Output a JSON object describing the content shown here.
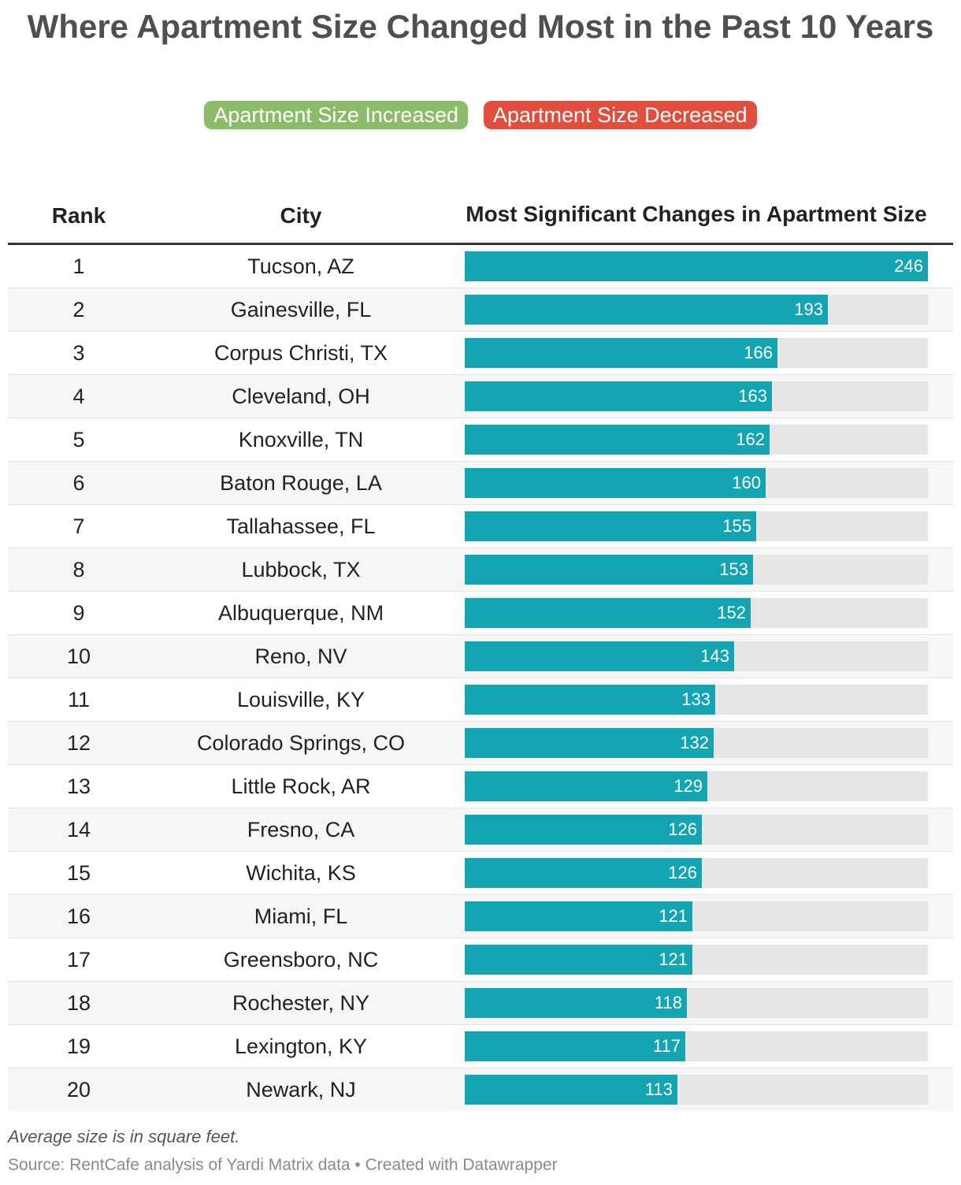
{
  "title": "Where Apartment Size Changed Most in the Past 10 Years",
  "legend": {
    "increased": "Apartment Size Increased",
    "decreased": "Apartment Size Decreased"
  },
  "colors": {
    "increased": "#8cbc6a",
    "decreased": "#e14e3e",
    "bar": "#14a5b3",
    "track": "#e6e6e6"
  },
  "headers": {
    "rank": "Rank",
    "city": "City",
    "bar": "Most Significant Changes in Apartment Size"
  },
  "chart_data": {
    "type": "table",
    "xlim": [
      0,
      246
    ],
    "columns": [
      "Rank",
      "City",
      "Most Significant Changes in Apartment Size"
    ],
    "rows": [
      {
        "rank": "1",
        "city": "Tucson, AZ",
        "value": 246
      },
      {
        "rank": "2",
        "city": "Gainesville, FL",
        "value": 193
      },
      {
        "rank": "3",
        "city": "Corpus Christi, TX",
        "value": 166
      },
      {
        "rank": "4",
        "city": "Cleveland, OH",
        "value": 163
      },
      {
        "rank": "5",
        "city": "Knoxville, TN",
        "value": 162
      },
      {
        "rank": "6",
        "city": "Baton Rouge, LA",
        "value": 160
      },
      {
        "rank": "7",
        "city": "Tallahassee, FL",
        "value": 155
      },
      {
        "rank": "8",
        "city": "Lubbock, TX",
        "value": 153
      },
      {
        "rank": "9",
        "city": "Albuquerque, NM",
        "value": 152
      },
      {
        "rank": "10",
        "city": "Reno, NV",
        "value": 143
      },
      {
        "rank": "11",
        "city": "Louisville, KY",
        "value": 133
      },
      {
        "rank": "12",
        "city": "Colorado Springs, CO",
        "value": 132
      },
      {
        "rank": "13",
        "city": "Little Rock, AR",
        "value": 129
      },
      {
        "rank": "14",
        "city": "Fresno, CA",
        "value": 126
      },
      {
        "rank": "15",
        "city": "Wichita, KS",
        "value": 126
      },
      {
        "rank": "16",
        "city": "Miami, FL",
        "value": 121
      },
      {
        "rank": "17",
        "city": "Greensboro, NC",
        "value": 121
      },
      {
        "rank": "18",
        "city": "Rochester, NY",
        "value": 118
      },
      {
        "rank": "19",
        "city": "Lexington, KY",
        "value": 117
      },
      {
        "rank": "20",
        "city": "Newark, NJ",
        "value": 113
      }
    ]
  },
  "note": "Average size is in square feet.",
  "source": "Source: RentCafe analysis of Yardi Matrix data • Created with Datawrapper"
}
